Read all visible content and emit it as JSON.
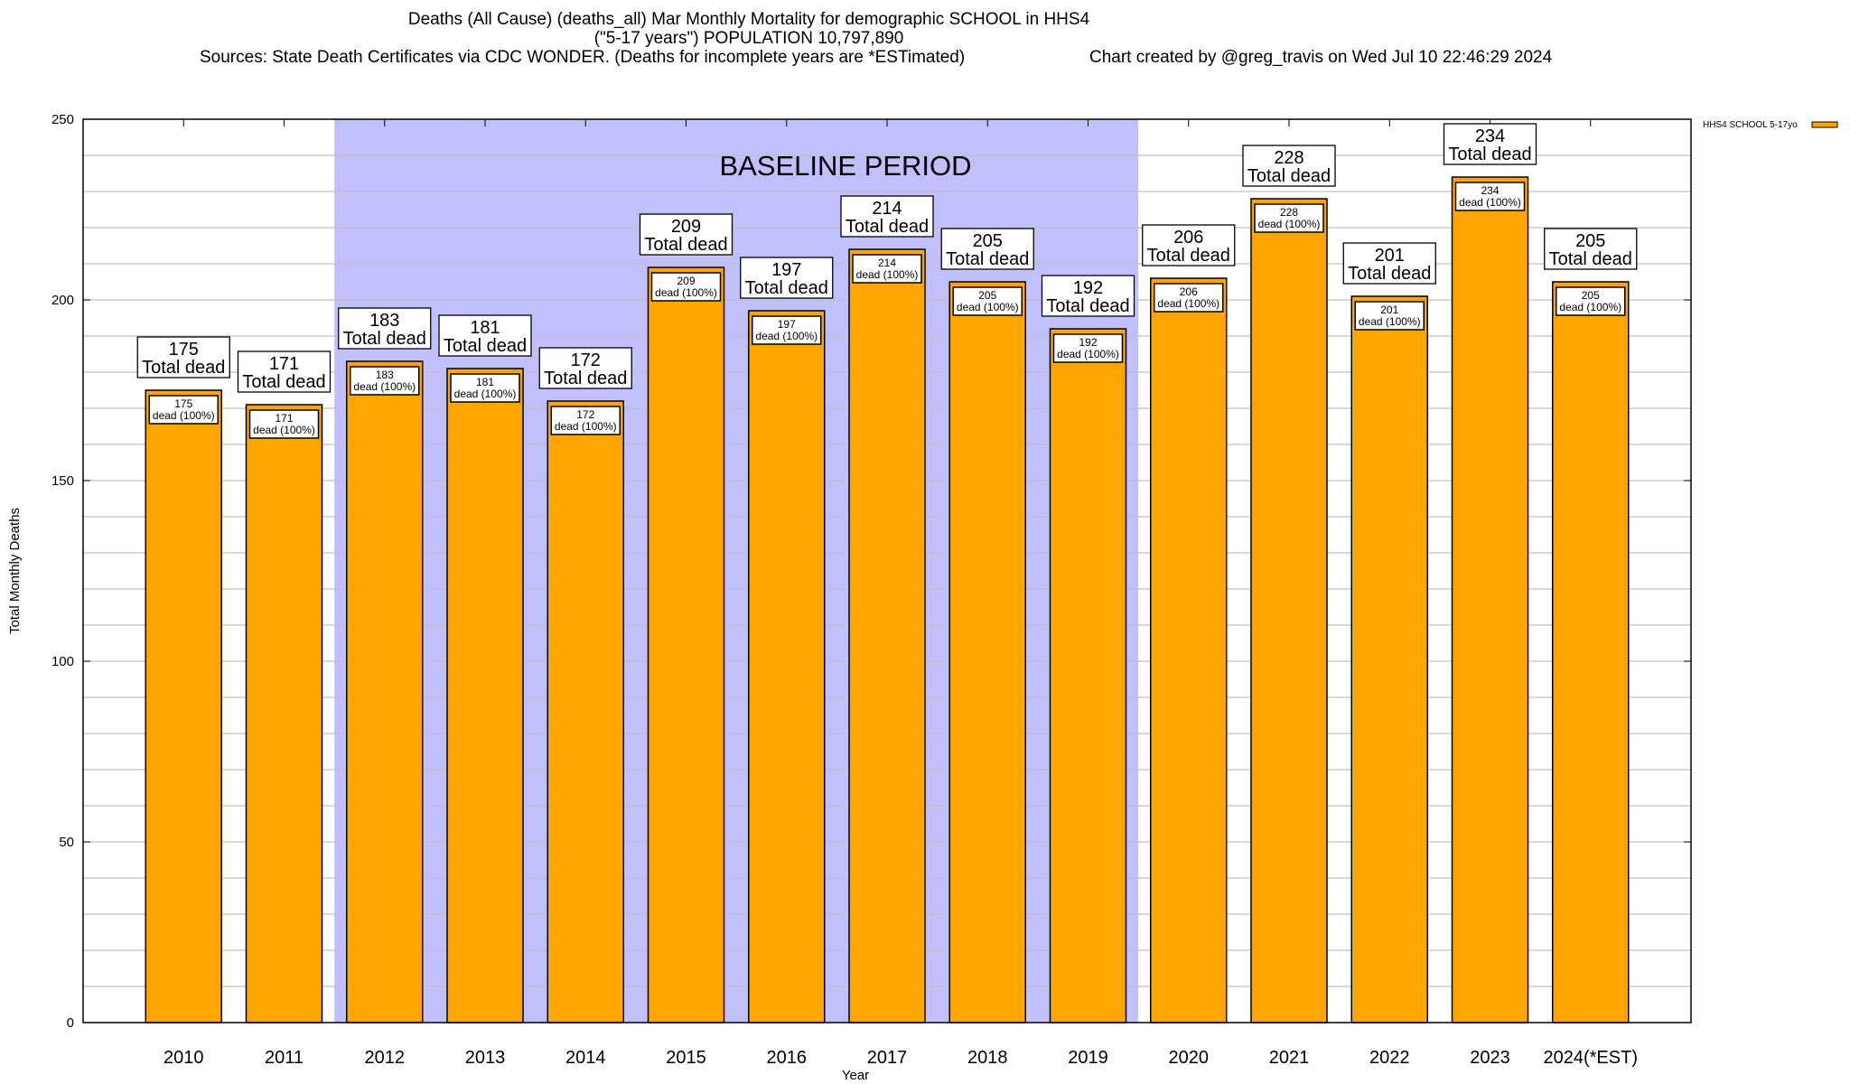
{
  "title": {
    "line1": "Deaths (All Cause) (deaths_all) Mar Monthly Mortality for demographic SCHOOL in HHS4",
    "line2": "(\"5-17 years\") POPULATION 10,797,890",
    "sources": "Sources: State Death Certificates via CDC WONDER. (Deaths for incomplete years are *ESTimated)",
    "credit": "Chart created by @greg_travis on Wed Jul 10 22:46:29 2024"
  },
  "chart_data": {
    "type": "bar",
    "title": "Deaths (All Cause) (deaths_all) Mar Monthly Mortality for demographic SCHOOL in HHS4",
    "xlabel": "Year",
    "ylabel": "Total Monthly Deaths",
    "ylim": [
      0,
      250
    ],
    "yticks": [
      0,
      50,
      100,
      150,
      200,
      250
    ],
    "grid": true,
    "legend": {
      "label": "HHS4 SCHOOL 5-17yo",
      "placement": "right-outside-top",
      "color": "#FFA500"
    },
    "annotation": {
      "text": "BASELINE PERIOD",
      "from": "2012",
      "to": "2019",
      "color": "#C0C0FF"
    },
    "categories": [
      "2010",
      "2011",
      "2012",
      "2013",
      "2014",
      "2015",
      "2016",
      "2017",
      "2018",
      "2019",
      "2020",
      "2021",
      "2022",
      "2023",
      "2024(*EST)"
    ],
    "values": [
      175,
      171,
      183,
      181,
      172,
      209,
      197,
      214,
      205,
      192,
      206,
      228,
      201,
      234,
      205
    ],
    "top_label_suffix": "Total dead",
    "inner_label_suffix": "dead (100%)"
  }
}
